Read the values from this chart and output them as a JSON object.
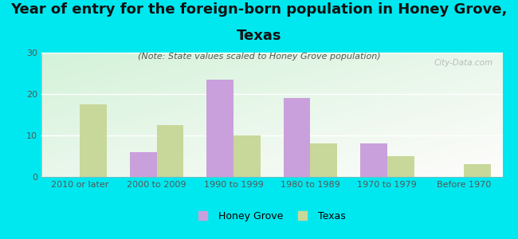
{
  "title_line1": "Year of entry for the foreign-born population in Honey Grove,",
  "title_line2": "Texas",
  "subtitle": "(Note: State values scaled to Honey Grove population)",
  "categories": [
    "2010 or later",
    "2000 to 2009",
    "1990 to 1999",
    "1980 to 1989",
    "1970 to 1979",
    "Before 1970"
  ],
  "honey_grove": [
    0,
    6,
    23.5,
    19,
    8,
    0
  ],
  "texas": [
    17.5,
    12.5,
    10,
    8,
    5,
    3
  ],
  "honey_grove_color": "#c9a0dc",
  "texas_color": "#c8d89a",
  "background_color": "#00e8ef",
  "ylim": [
    0,
    30
  ],
  "yticks": [
    0,
    10,
    20,
    30
  ],
  "bar_width": 0.35,
  "title_fontsize": 13,
  "subtitle_fontsize": 8,
  "tick_fontsize": 8,
  "legend_fontsize": 9,
  "watermark": "City-Data.com"
}
